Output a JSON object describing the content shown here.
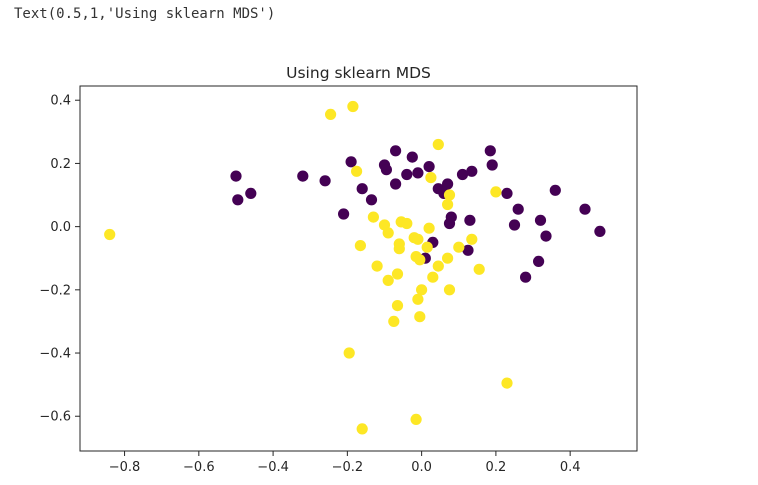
{
  "output_text": "Text(0.5,1,'Using sklearn MDS')",
  "colors": {
    "class_0": "#440154",
    "class_1": "#fde725",
    "axes": "#262626"
  },
  "chart_data": {
    "type": "scatter",
    "title": "Using sklearn MDS",
    "xlabel": "",
    "ylabel": "",
    "xlim": [
      -0.92,
      0.58
    ],
    "ylim": [
      -0.71,
      0.445
    ],
    "xticks": [
      -0.8,
      -0.6,
      -0.4,
      -0.2,
      0.0,
      0.2,
      0.4
    ],
    "xtick_labels": [
      "−0.8",
      "−0.6",
      "−0.4",
      "−0.2",
      "0.0",
      "0.2",
      "0.4"
    ],
    "yticks": [
      0.4,
      0.2,
      0.0,
      -0.2,
      -0.4,
      -0.6
    ],
    "ytick_labels": [
      "0.4",
      "0.2",
      "0.0",
      "−0.2",
      "−0.4",
      "−0.6"
    ],
    "grid": false,
    "series": [
      {
        "color": "#440154",
        "points": [
          [
            -0.5,
            0.16
          ],
          [
            -0.495,
            0.085
          ],
          [
            -0.46,
            0.105
          ],
          [
            -0.32,
            0.16
          ],
          [
            -0.26,
            0.145
          ],
          [
            -0.19,
            0.205
          ],
          [
            -0.16,
            0.12
          ],
          [
            -0.135,
            0.085
          ],
          [
            -0.21,
            0.04
          ],
          [
            -0.1,
            0.195
          ],
          [
            -0.095,
            0.18
          ],
          [
            -0.07,
            0.24
          ],
          [
            -0.07,
            0.135
          ],
          [
            -0.04,
            0.165
          ],
          [
            -0.025,
            0.22
          ],
          [
            -0.01,
            0.17
          ],
          [
            0.02,
            0.19
          ],
          [
            0.045,
            0.12
          ],
          [
            0.07,
            0.135
          ],
          [
            0.06,
            0.105
          ],
          [
            0.075,
            0.01
          ],
          [
            0.08,
            0.03
          ],
          [
            0.03,
            -0.05
          ],
          [
            0.01,
            -0.1
          ],
          [
            0.11,
            0.165
          ],
          [
            0.135,
            0.175
          ],
          [
            0.13,
            0.02
          ],
          [
            0.125,
            -0.075
          ],
          [
            0.185,
            0.24
          ],
          [
            0.19,
            0.195
          ],
          [
            0.23,
            0.105
          ],
          [
            0.26,
            0.055
          ],
          [
            0.25,
            0.005
          ],
          [
            0.28,
            -0.16
          ],
          [
            0.32,
            0.02
          ],
          [
            0.335,
            -0.03
          ],
          [
            0.315,
            -0.11
          ],
          [
            0.36,
            0.115
          ],
          [
            0.44,
            0.055
          ],
          [
            0.48,
            -0.015
          ]
        ]
      },
      {
        "color": "#fde725",
        "points": [
          [
            -0.84,
            -0.025
          ],
          [
            -0.245,
            0.355
          ],
          [
            -0.185,
            0.38
          ],
          [
            -0.175,
            0.175
          ],
          [
            -0.165,
            -0.06
          ],
          [
            -0.13,
            0.03
          ],
          [
            -0.12,
            -0.125
          ],
          [
            -0.1,
            0.005
          ],
          [
            -0.09,
            -0.02
          ],
          [
            -0.09,
            -0.17
          ],
          [
            -0.075,
            -0.3
          ],
          [
            -0.065,
            -0.25
          ],
          [
            -0.065,
            -0.15
          ],
          [
            -0.06,
            -0.055
          ],
          [
            -0.06,
            -0.07
          ],
          [
            -0.055,
            0.015
          ],
          [
            -0.04,
            0.01
          ],
          [
            -0.02,
            -0.035
          ],
          [
            -0.015,
            -0.095
          ],
          [
            -0.01,
            -0.04
          ],
          [
            -0.005,
            -0.105
          ],
          [
            -0.01,
            -0.23
          ],
          [
            -0.005,
            -0.285
          ],
          [
            0.0,
            -0.2
          ],
          [
            0.015,
            -0.065
          ],
          [
            0.02,
            -0.005
          ],
          [
            0.025,
            0.155
          ],
          [
            0.03,
            -0.16
          ],
          [
            0.045,
            0.26
          ],
          [
            0.045,
            -0.125
          ],
          [
            0.07,
            0.07
          ],
          [
            0.075,
            0.1
          ],
          [
            0.07,
            -0.1
          ],
          [
            0.075,
            -0.2
          ],
          [
            0.1,
            -0.065
          ],
          [
            0.135,
            -0.04
          ],
          [
            0.155,
            -0.135
          ],
          [
            0.2,
            0.11
          ],
          [
            0.23,
            -0.495
          ],
          [
            -0.195,
            -0.4
          ],
          [
            -0.16,
            -0.64
          ],
          [
            -0.015,
            -0.61
          ]
        ]
      }
    ]
  }
}
